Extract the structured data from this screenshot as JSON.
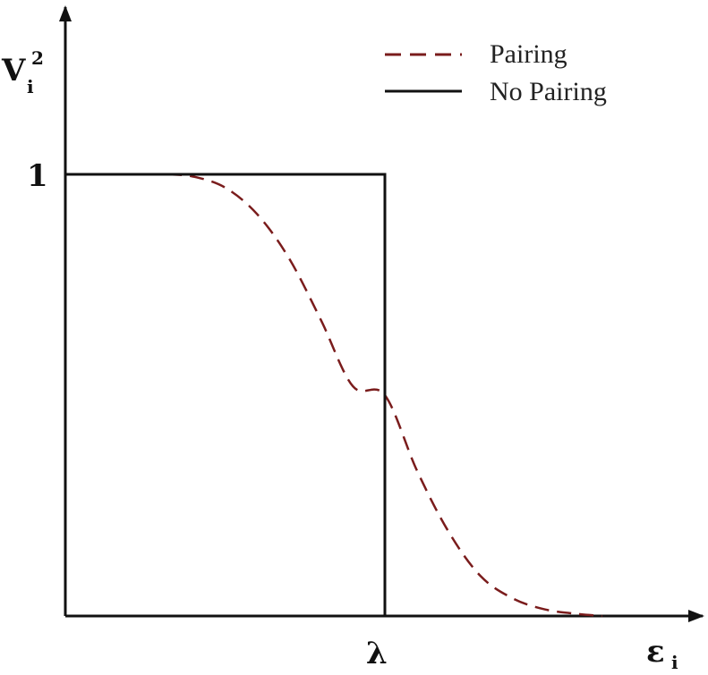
{
  "chart_data": {
    "type": "line",
    "title": "",
    "xlabel": {
      "base": "ε",
      "sub": "i"
    },
    "ylabel": {
      "base": "V",
      "sub": "i",
      "sup": "2"
    },
    "x_tick_labels": [
      {
        "x": 1.0,
        "label": "λ"
      }
    ],
    "y_tick_labels": [
      {
        "y": 1.0,
        "label": "1"
      }
    ],
    "xlim": [
      0,
      2.0
    ],
    "ylim": [
      0,
      1.0
    ],
    "grid": false,
    "legend_position": "top-right",
    "series": [
      {
        "name": "Pairing",
        "style": "dashed",
        "color": "#7a1c1c",
        "description": "smooth occupation curve",
        "x": [
          0.32,
          0.4,
          0.5,
          0.6,
          0.7,
          0.8,
          0.9,
          1.0,
          1.1,
          1.2,
          1.3,
          1.4,
          1.5,
          1.6,
          1.68
        ],
        "y": [
          1.0,
          0.995,
          0.97,
          0.91,
          0.81,
          0.67,
          0.52,
          0.5,
          0.33,
          0.19,
          0.09,
          0.04,
          0.015,
          0.005,
          0.0
        ]
      },
      {
        "name": "No Pairing",
        "style": "solid",
        "color": "#111111",
        "x": [
          0,
          1.0,
          1.0
        ],
        "y": [
          1.0,
          1.0,
          0.0
        ]
      }
    ]
  },
  "legend": {
    "items": [
      {
        "label": "Pairing",
        "color": "#7a1c1c",
        "style": "dashed"
      },
      {
        "label": "No Pairing",
        "color": "#111111",
        "style": "solid"
      }
    ]
  },
  "colors": {
    "axis": "#111111",
    "pairing": "#7a1c1c",
    "no_pairing": "#111111",
    "background": "#ffffff"
  }
}
